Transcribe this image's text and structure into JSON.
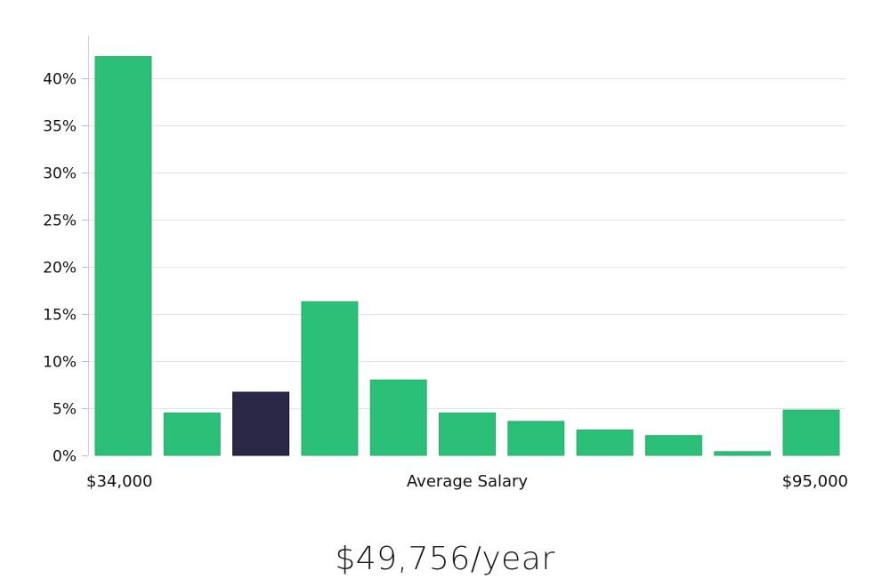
{
  "chart_data": {
    "type": "bar",
    "x_range_labels": [
      "$34,000",
      "$95,000"
    ],
    "xlabel": "Average Salary",
    "ylabel": "",
    "yticks": [
      "0%",
      "5%",
      "10%",
      "15%",
      "20%",
      "25%",
      "30%",
      "35%",
      "40%"
    ],
    "ylim": [
      0,
      44
    ],
    "values": [
      42.3,
      4.5,
      6.7,
      16.3,
      8.0,
      4.5,
      3.6,
      2.7,
      2.1,
      0.4,
      4.8
    ],
    "highlight_index": 2,
    "grid": true,
    "colors": {
      "bar": "#2bbf77",
      "bar_edge": "#25b06d",
      "highlight": "#2a2747",
      "highlight_edge": "#111026",
      "grid": "#e2e2e2",
      "axis": "#cccccc"
    }
  },
  "salary": {
    "value": "$49,756/year"
  }
}
